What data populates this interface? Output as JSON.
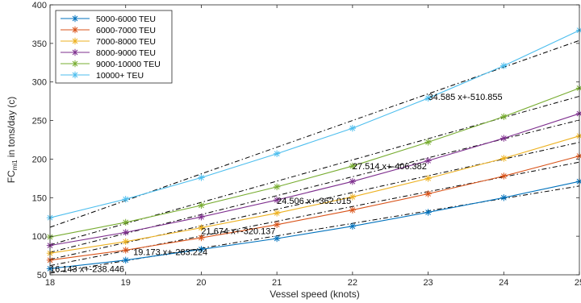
{
  "chart_data": {
    "type": "line",
    "title": "",
    "xlabel": "Vessel speed (knots)",
    "ylabel": "FC_mi1 in tons/day (c)",
    "ylabel_main": "FC",
    "ylabel_sub": "mi1",
    "ylabel_rest": " in tons/day (c)",
    "xlim": [
      18,
      25
    ],
    "ylim": [
      50,
      400
    ],
    "xticks": [
      18,
      19,
      20,
      21,
      22,
      23,
      24,
      25
    ],
    "yticks": [
      50,
      100,
      150,
      200,
      250,
      300,
      350,
      400
    ],
    "grid": false,
    "legend_position": "top-left",
    "x": [
      18,
      19,
      20,
      21,
      22,
      23,
      24,
      25
    ],
    "series": [
      {
        "name": "5000-6000 TEU",
        "color": "#0072BD",
        "values": [
          58,
          69,
          83,
          97,
          113,
          131,
          150,
          171
        ]
      },
      {
        "name": "6000-7000 TEU",
        "color": "#D95319",
        "values": [
          69,
          82,
          98,
          115,
          134,
          155,
          178,
          204
        ]
      },
      {
        "name": "7000-8000 TEU",
        "color": "#EDB120",
        "values": [
          78,
          93,
          111,
          130,
          151,
          175,
          201,
          230
        ]
      },
      {
        "name": "8000-9000 TEU",
        "color": "#7E2F8E",
        "values": [
          88,
          105,
          125,
          147,
          171,
          198,
          227,
          259
        ]
      },
      {
        "name": "9000-10000 TEU",
        "color": "#77AC30",
        "values": [
          99,
          118,
          140,
          164,
          191,
          222,
          255,
          292
        ]
      },
      {
        "name": "10000+  TEU",
        "color": "#4DBEEE",
        "values": [
          124,
          148,
          176,
          207,
          240,
          279,
          321,
          367
        ]
      }
    ],
    "fit_lines": [
      {
        "slope": 16.143,
        "intercept": -238.446,
        "label": "16.143 x+-238.446",
        "label_x": 18,
        "label_y": 58
      },
      {
        "slope": 19.173,
        "intercept": -283.224,
        "label": "19.173 x+-283.224",
        "label_x": 19.1,
        "label_y": 80
      },
      {
        "slope": 21.674,
        "intercept": -320.137,
        "label": "21.674 x+-320.137",
        "label_x": 20,
        "label_y": 107
      },
      {
        "slope": 24.506,
        "intercept": -362.015,
        "label": "24.506 x+-362.015",
        "label_x": 21,
        "label_y": 146
      },
      {
        "slope": 27.514,
        "intercept": -406.382,
        "label": "27.514 x+-406.382",
        "label_x": 22,
        "label_y": 191
      },
      {
        "slope": 34.585,
        "intercept": -510.855,
        "label": "34.585 x+-510.855",
        "label_x": 23,
        "label_y": 281
      }
    ]
  }
}
